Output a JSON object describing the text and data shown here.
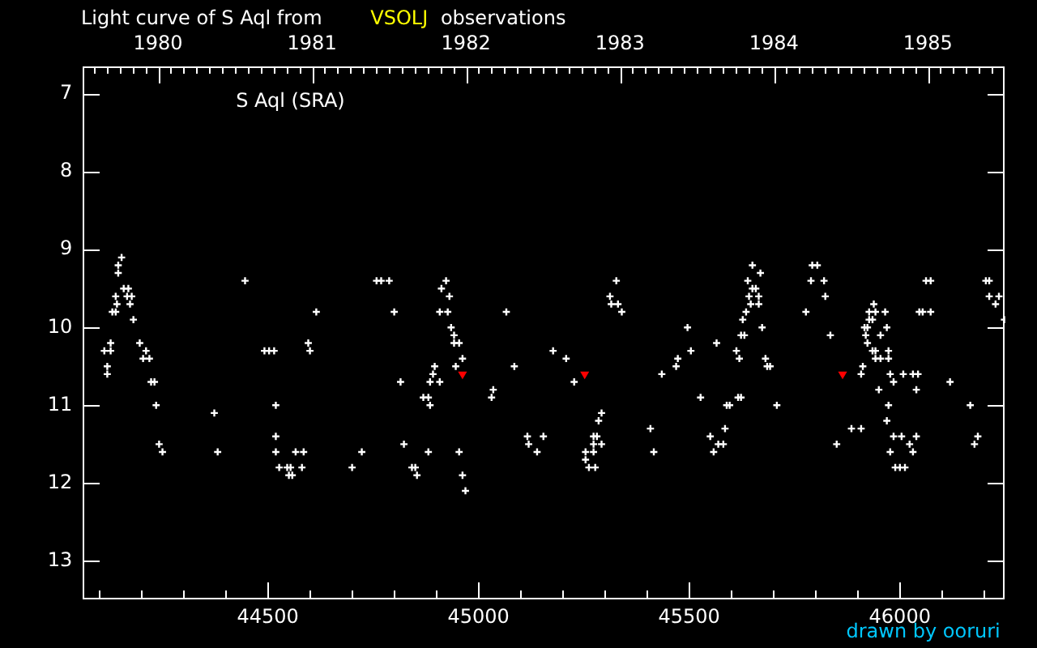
{
  "chart_data": {
    "type": "scatter",
    "title": "Light curve of S Aql from VSOLJ observations",
    "annotations": [
      "S Aql (SRA)",
      "drawn by ooruri"
    ],
    "marker": "cross",
    "grid": false,
    "legend": false,
    "xlim": [
      44059,
      46250
    ],
    "ylim": [
      13.5,
      6.64
    ],
    "xticks": [
      {
        "value": 44100,
        "label": null
      },
      {
        "value": 44200,
        "label": null
      },
      {
        "value": 44300,
        "label": null
      },
      {
        "value": 44400,
        "label": null
      },
      44500,
      {
        "value": 44600,
        "label": null
      },
      {
        "value": 44700,
        "label": null
      },
      {
        "value": 44800,
        "label": null
      },
      {
        "value": 44900,
        "label": null
      },
      45000,
      {
        "value": 45100,
        "label": null
      },
      {
        "value": 45200,
        "label": null
      },
      {
        "value": 45300,
        "label": null
      },
      {
        "value": 45400,
        "label": null
      },
      45500,
      {
        "value": 45600,
        "label": null
      },
      {
        "value": 45700,
        "label": null
      },
      {
        "value": 45800,
        "label": null
      },
      {
        "value": 45900,
        "label": null
      },
      46000,
      {
        "value": 46100,
        "label": null
      },
      {
        "value": 46200,
        "label": null
      }
    ],
    "yticks": [
      7,
      8,
      9,
      10,
      11,
      12,
      13
    ],
    "x2lim": [
      1979.506,
      1985.503
    ],
    "x2ticks": [
      {
        "value": 1979.583,
        "label": null
      },
      {
        "value": 1979.667,
        "label": null
      },
      {
        "value": 1979.75,
        "label": null
      },
      {
        "value": 1979.833,
        "label": null
      },
      {
        "value": 1979.917,
        "label": null
      },
      1980,
      {
        "value": 1980.083,
        "label": null
      },
      {
        "value": 1980.167,
        "label": null
      },
      {
        "value": 1980.25,
        "label": null
      },
      {
        "value": 1980.333,
        "label": null
      },
      {
        "value": 1980.417,
        "label": null
      },
      {
        "value": 1980.5,
        "label": null
      },
      {
        "value": 1980.583,
        "label": null
      },
      {
        "value": 1980.667,
        "label": null
      },
      {
        "value": 1980.75,
        "label": null
      },
      {
        "value": 1980.833,
        "label": null
      },
      {
        "value": 1980.917,
        "label": null
      },
      1981,
      {
        "value": 1981.083,
        "label": null
      },
      {
        "value": 1981.167,
        "label": null
      },
      {
        "value": 1981.25,
        "label": null
      },
      {
        "value": 1981.333,
        "label": null
      },
      {
        "value": 1981.417,
        "label": null
      },
      {
        "value": 1981.5,
        "label": null
      },
      {
        "value": 1981.583,
        "label": null
      },
      {
        "value": 1981.667,
        "label": null
      },
      {
        "value": 1981.75,
        "label": null
      },
      {
        "value": 1981.833,
        "label": null
      },
      {
        "value": 1981.917,
        "label": null
      },
      1982,
      {
        "value": 1982.083,
        "label": null
      },
      {
        "value": 1982.167,
        "label": null
      },
      {
        "value": 1982.25,
        "label": null
      },
      {
        "value": 1982.333,
        "label": null
      },
      {
        "value": 1982.417,
        "label": null
      },
      {
        "value": 1982.5,
        "label": null
      },
      {
        "value": 1982.583,
        "label": null
      },
      {
        "value": 1982.667,
        "label": null
      },
      {
        "value": 1982.75,
        "label": null
      },
      {
        "value": 1982.833,
        "label": null
      },
      {
        "value": 1982.917,
        "label": null
      },
      1983,
      {
        "value": 1983.083,
        "label": null
      },
      {
        "value": 1983.167,
        "label": null
      },
      {
        "value": 1983.25,
        "label": null
      },
      {
        "value": 1983.333,
        "label": null
      },
      {
        "value": 1983.417,
        "label": null
      },
      {
        "value": 1983.5,
        "label": null
      },
      {
        "value": 1983.583,
        "label": null
      },
      {
        "value": 1983.667,
        "label": null
      },
      {
        "value": 1983.75,
        "label": null
      },
      {
        "value": 1983.833,
        "label": null
      },
      {
        "value": 1983.917,
        "label": null
      },
      1984,
      {
        "value": 1984.083,
        "label": null
      },
      {
        "value": 1984.167,
        "label": null
      },
      {
        "value": 1984.25,
        "label": null
      },
      {
        "value": 1984.333,
        "label": null
      },
      {
        "value": 1984.417,
        "label": null
      },
      {
        "value": 1984.5,
        "label": null
      },
      {
        "value": 1984.583,
        "label": null
      },
      {
        "value": 1984.667,
        "label": null
      },
      {
        "value": 1984.75,
        "label": null
      },
      {
        "value": 1984.833,
        "label": null
      },
      {
        "value": 1984.917,
        "label": null
      },
      1985,
      {
        "value": 1985.083,
        "label": null
      },
      {
        "value": 1985.167,
        "label": null
      },
      {
        "value": 1985.25,
        "label": null
      },
      {
        "value": 1985.333,
        "label": null
      },
      {
        "value": 1985.417,
        "label": null
      }
    ],
    "series": [
      {
        "color": "#ffffff",
        "x": [
          44112,
          44119,
          44119,
          44127,
          44127,
          44131,
          44139,
          44139,
          44142,
          44145,
          44145,
          44153,
          44158,
          44166,
          44169,
          44173,
          44177,
          44181,
          44196,
          44204,
          44211,
          44219,
          44223,
          44231,
          44235,
          44242,
          44250,
          44373,
          44381,
          44446,
          44492,
          44503,
          44515,
          44519,
          44519,
          44519,
          44527,
          44546,
          44550,
          44554,
          44558,
          44566,
          44581,
          44585,
          44596,
          44600,
          44615,
          44700,
          44723,
          44758,
          44769,
          44788,
          44800,
          44815,
          44823,
          44842,
          44850,
          44854,
          44869,
          44881,
          44881,
          44885,
          44885,
          44892,
          44896,
          44908,
          44908,
          44912,
          44923,
          44927,
          44931,
          44935,
          44942,
          44942,
          44946,
          44954,
          44954,
          44962,
          44962,
          44969,
          45031,
          45035,
          45066,
          45085,
          45116,
          45119,
          45139,
          45154,
          45177,
          45208,
          45227,
          45254,
          45254,
          45262,
          45273,
          45273,
          45273,
          45277,
          45281,
          45285,
          45292,
          45292,
          45312,
          45315,
          45327,
          45331,
          45340,
          45408,
          45416,
          45435,
          45469,
          45473,
          45496,
          45504,
          45527,
          45550,
          45558,
          45565,
          45569,
          45581,
          45585,
          45589,
          45596,
          45612,
          45616,
          45619,
          45623,
          45623,
          45627,
          45631,
          45635,
          45639,
          45642,
          45646,
          45650,
          45650,
          45658,
          45665,
          45665,
          45669,
          45673,
          45681,
          45685,
          45692,
          45708,
          45777,
          45789,
          45792,
          45804,
          45820,
          45823,
          45835,
          45850,
          45885,
          45908,
          45908,
          45912,
          45916,
          45919,
          45923,
          45923,
          45927,
          45927,
          45935,
          45935,
          45938,
          45942,
          45942,
          45942,
          45950,
          45954,
          45954,
          45965,
          45969,
          45969,
          45973,
          45973,
          45973,
          45977,
          45977,
          45985,
          45985,
          45989,
          46000,
          46004,
          46008,
          46012,
          46023,
          46031,
          46031,
          46039,
          46039,
          46043,
          46046,
          46054,
          46062,
          46073,
          46073,
          46119,
          46167,
          46177,
          46185,
          46204,
          46212,
          46212,
          46227,
          46235,
          46248
        ],
        "values": [
          10.3,
          10.5,
          10.6,
          10.2,
          10.3,
          9.8,
          9.6,
          9.8,
          9.7,
          9.2,
          9.3,
          9.1,
          9.5,
          9.6,
          9.5,
          9.7,
          9.6,
          9.9,
          10.2,
          10.4,
          10.3,
          10.4,
          10.7,
          10.7,
          11.0,
          11.5,
          11.6,
          11.1,
          11.6,
          9.4,
          10.3,
          10.3,
          10.3,
          11.0,
          11.4,
          11.6,
          11.8,
          11.8,
          11.9,
          11.8,
          11.9,
          11.6,
          11.8,
          11.6,
          10.2,
          10.3,
          9.8,
          11.8,
          11.6,
          9.4,
          9.4,
          9.4,
          9.8,
          10.7,
          11.5,
          11.8,
          11.8,
          11.9,
          10.9,
          10.9,
          11.6,
          10.7,
          11.0,
          10.6,
          10.5,
          9.8,
          10.7,
          9.5,
          9.4,
          9.8,
          9.6,
          10.0,
          10.1,
          10.2,
          10.5,
          10.2,
          11.6,
          10.4,
          11.9,
          12.1,
          10.9,
          10.8,
          9.8,
          10.5,
          11.4,
          11.5,
          11.6,
          11.4,
          10.3,
          10.4,
          10.7,
          11.6,
          11.7,
          11.8,
          11.4,
          11.5,
          11.6,
          11.8,
          11.4,
          11.2,
          11.1,
          11.5,
          9.6,
          9.7,
          9.4,
          9.7,
          9.8,
          11.3,
          11.6,
          10.6,
          10.5,
          10.4,
          10.0,
          10.3,
          10.9,
          11.4,
          11.6,
          10.2,
          11.5,
          11.5,
          11.3,
          11.0,
          11.0,
          10.3,
          10.9,
          10.4,
          10.1,
          10.9,
          9.9,
          10.1,
          9.8,
          9.4,
          9.6,
          9.7,
          9.2,
          9.5,
          9.5,
          9.6,
          9.7,
          9.3,
          10.0,
          10.4,
          10.5,
          10.5,
          11.0,
          9.8,
          9.4,
          9.2,
          9.2,
          9.4,
          9.6,
          10.1,
          11.5,
          11.3,
          11.3,
          10.6,
          10.5,
          10.0,
          10.1,
          10.0,
          10.2,
          9.8,
          9.9,
          9.9,
          10.3,
          9.7,
          9.8,
          10.3,
          10.4,
          10.8,
          10.1,
          10.4,
          9.8,
          10.0,
          11.2,
          10.3,
          10.4,
          11.0,
          10.6,
          11.6,
          10.7,
          11.4,
          11.8,
          11.8,
          11.4,
          10.6,
          11.8,
          11.5,
          10.6,
          11.6,
          10.8,
          11.4,
          10.6,
          9.8,
          9.8,
          9.4,
          9.4,
          9.8,
          10.7,
          11.0,
          11.5,
          11.4,
          9.4,
          9.4,
          9.6,
          9.7,
          9.6,
          9.9
        ]
      },
      {
        "color": "#ff0000",
        "marker": "triangle",
        "x": [
          44962,
          45252,
          45864
        ],
        "values": [
          10.6,
          10.6,
          10.6
        ]
      }
    ]
  }
}
